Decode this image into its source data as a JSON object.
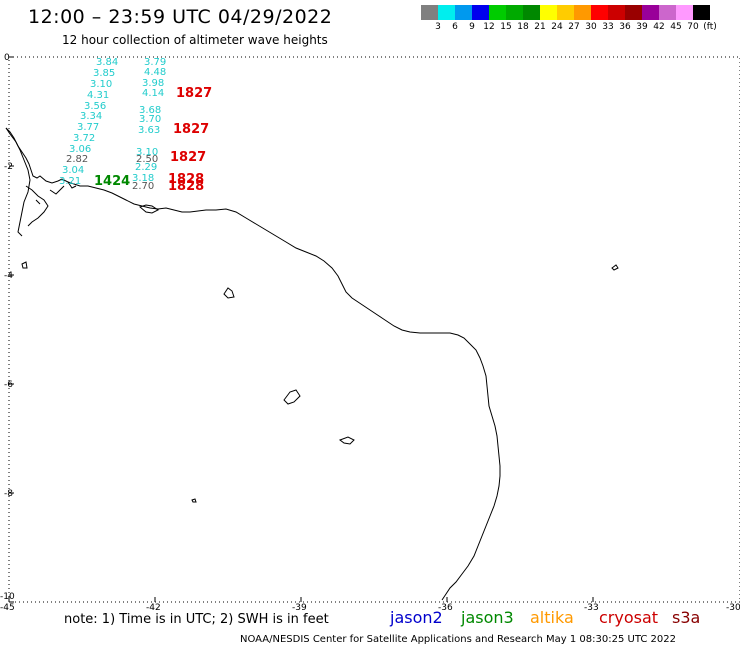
{
  "title": "12:00 – 23:59 UTC 04/29/2022",
  "subtitle": "12 hour collection of altimeter wave heights",
  "colorbar": {
    "colors": [
      "#808080",
      "#00eeee",
      "#0099ee",
      "#0000ee",
      "#00cc00",
      "#00aa00",
      "#008800",
      "#ffff00",
      "#ffcc00",
      "#ff9900",
      "#ff0000",
      "#cc0000",
      "#990000",
      "#990099",
      "#cc66cc",
      "#ff99ff",
      "#000000"
    ],
    "labels": [
      "3",
      "6",
      "9",
      "12",
      "15",
      "18",
      "21",
      "24",
      "27",
      "30",
      "33",
      "36",
      "39",
      "42",
      "45",
      "70",
      "(ft)"
    ]
  },
  "axes": {
    "x_ticks": [
      "-45",
      "-42",
      "-39",
      "-36",
      "-33",
      "-30"
    ],
    "y_ticks": [
      "0",
      "-2",
      "-4",
      "-6",
      "-8",
      "-10"
    ]
  },
  "track_left": [
    "3.84",
    "3.85",
    "3.10",
    "4.31",
    "3.56",
    "3.34",
    "3.77",
    "3.72",
    "3.06",
    "2.82",
    "3.04",
    "3.21"
  ],
  "track_right": [
    "3.79",
    "4.48",
    "3.98",
    "4.14",
    "3.68",
    "3.70",
    "3.63",
    "3.10",
    "2.50",
    "2.29",
    "3.18",
    "2.70"
  ],
  "time_labels": [
    "1827",
    "1827",
    "1827",
    "1424",
    "1828",
    "1828"
  ],
  "note": "note:  1) Time is in UTC;  2) SWH is in feet",
  "satellites": [
    {
      "name": "jason2",
      "color": "#0000cc"
    },
    {
      "name": "jason3",
      "color": "#008800"
    },
    {
      "name": "altika",
      "color": "#ff9900"
    },
    {
      "name": "cryosat",
      "color": "#cc0000"
    },
    {
      "name": "s3a",
      "color": "#880000"
    }
  ],
  "footer": "NOAA/NESDIS Center for Satellite Applications and Research     May  1 08:30:25 UTC 2022"
}
